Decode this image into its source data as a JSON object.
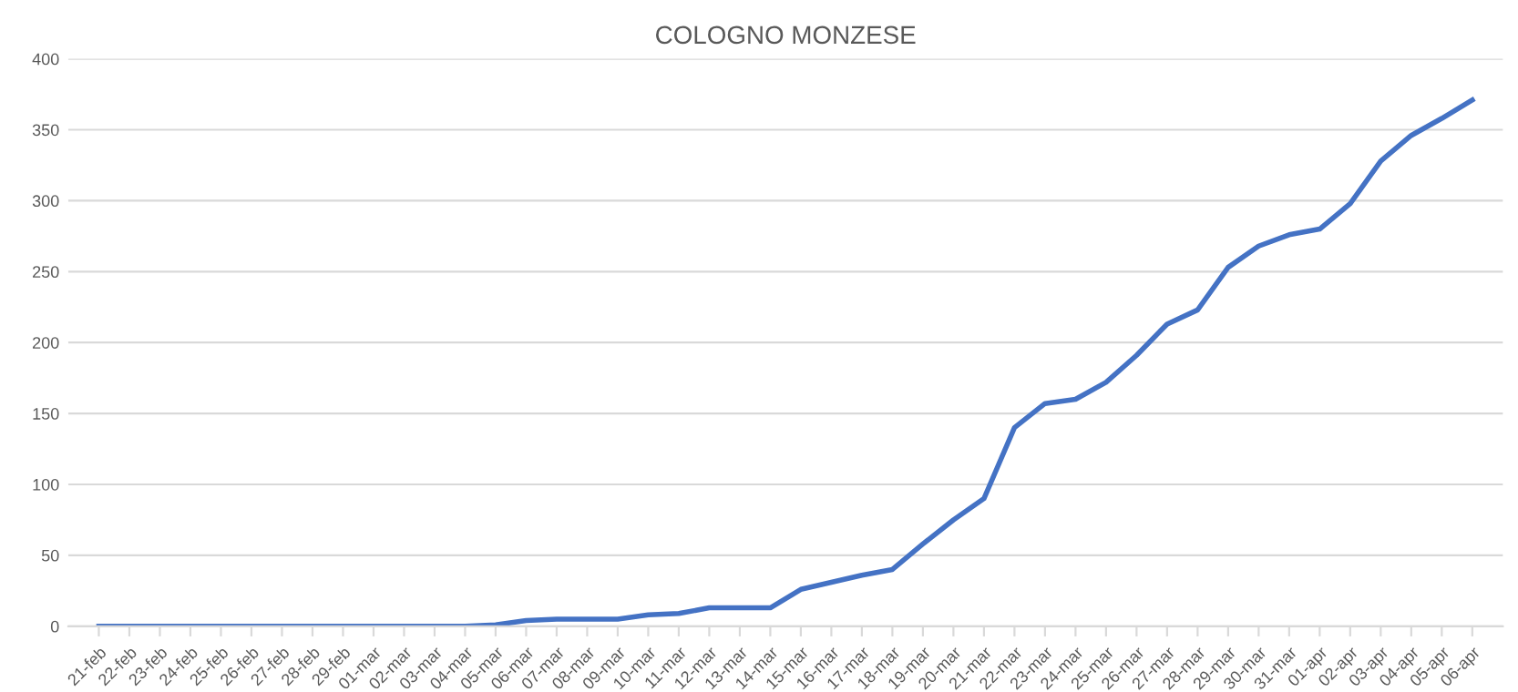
{
  "chart_data": {
    "type": "line",
    "title": "COLOGNO MONZESE",
    "categories": [
      "21-feb",
      "22-feb",
      "23-feb",
      "24-feb",
      "25-feb",
      "26-feb",
      "27-feb",
      "28-feb",
      "29-feb",
      "01-mar",
      "02-mar",
      "03-mar",
      "04-mar",
      "05-mar",
      "06-mar",
      "07-mar",
      "08-mar",
      "09-mar",
      "10-mar",
      "11-mar",
      "12-mar",
      "13-mar",
      "14-mar",
      "15-mar",
      "16-mar",
      "17-mar",
      "18-mar",
      "19-mar",
      "20-mar",
      "21-mar",
      "22-mar",
      "23-mar",
      "24-mar",
      "25-mar",
      "26-mar",
      "27-mar",
      "28-mar",
      "29-mar",
      "30-mar",
      "31-mar",
      "01-apr",
      "02-apr",
      "03-apr",
      "04-apr",
      "05-apr",
      "06-apr"
    ],
    "series": [
      {
        "color": "#4472c4",
        "values": [
          0,
          0,
          0,
          0,
          0,
          0,
          0,
          0,
          0,
          0,
          0,
          0,
          0,
          1,
          4,
          5,
          5,
          5,
          8,
          9,
          13,
          13,
          13,
          26,
          31,
          36,
          40,
          58,
          75,
          90,
          140,
          157,
          160,
          172,
          191,
          213,
          223,
          253,
          268,
          276,
          280,
          298,
          328,
          346,
          358,
          371
        ]
      }
    ],
    "ylim": [
      0,
      400
    ],
    "yticks": [
      0,
      50,
      100,
      150,
      200,
      250,
      300,
      350,
      400
    ],
    "grid": "y",
    "marker": "none",
    "line_style": "solid"
  }
}
